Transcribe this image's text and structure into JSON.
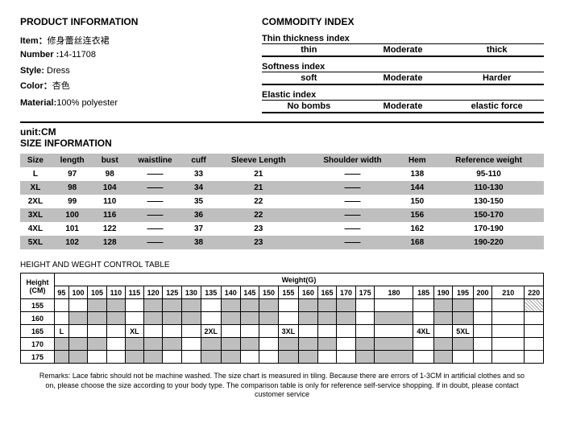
{
  "product": {
    "title": "PRODUCT INFORMATION",
    "item_label": "Item：",
    "item_value": "修身蕾丝连衣裙",
    "number_label": "Number :",
    "number_value": "14-11708",
    "style_label": "Style: ",
    "style_value": "Dress",
    "color_label": "Color：",
    "color_value": "杏色",
    "material_label": "Material:",
    "material_value": "100% polyester"
  },
  "commodity": {
    "title": "COMMODITY INDEX",
    "idx": [
      {
        "label": "Thin thickness index",
        "a": "thin",
        "b": "Moderate",
        "c": "thick"
      },
      {
        "label": "Softness index",
        "a": "soft",
        "b": "Moderate",
        "c": "Harder"
      },
      {
        "label": "Elastic index",
        "a": "No bombs",
        "b": "Moderate",
        "c": "elastic force"
      }
    ]
  },
  "unit": "unit:CM",
  "size_title": "SIZE INFORMATION",
  "size": {
    "headers": [
      "Size",
      "length",
      "bust",
      "waistline",
      "cuff",
      "Sleeve Length",
      "Shoulder width",
      "Hem",
      "Reference weight"
    ],
    "rows": [
      [
        "L",
        "97",
        "98",
        "——",
        "33",
        "21",
        "——",
        "138",
        "95-110"
      ],
      [
        "XL",
        "98",
        "104",
        "——",
        "34",
        "21",
        "——",
        "144",
        "110-130"
      ],
      [
        "2XL",
        "99",
        "110",
        "——",
        "35",
        "22",
        "——",
        "150",
        "130-150"
      ],
      [
        "3XL",
        "100",
        "116",
        "——",
        "36",
        "22",
        "——",
        "156",
        "150-170"
      ],
      [
        "4XL",
        "101",
        "122",
        "——",
        "37",
        "23",
        "——",
        "162",
        "170-190"
      ],
      [
        "5XL",
        "102",
        "128",
        "——",
        "38",
        "23",
        "——",
        "168",
        "190-220"
      ]
    ]
  },
  "hw": {
    "title": "HEIGHT AND WEGHT CONTROL TABLE",
    "weight_label": "Weight(G)",
    "height_label": "Height (CM)",
    "weights": [
      "95",
      "100",
      "105",
      "110",
      "115",
      "120",
      "125",
      "130",
      "135",
      "140",
      "145",
      "150",
      "155",
      "160",
      "165",
      "170",
      "175",
      "180",
      "185",
      "190",
      "195",
      "200",
      "210",
      "220"
    ],
    "heights": [
      "155",
      "160",
      "165",
      "170",
      "175"
    ],
    "labels": {
      "L": "L",
      "XL": "XL",
      "2XL": "2XL",
      "3XL": "3XL",
      "4XL": "4XL",
      "5XL": "5XL"
    }
  },
  "remarks": "Remarks: Lace fabric should not be machine washed. The size chart is measured in tiling. Because there are errors of 1-3CM in artificial clothes and so on, please choose the size according to your body type. The comparison table is only for reference self-service shopping. If in doubt, please contact customer service"
}
